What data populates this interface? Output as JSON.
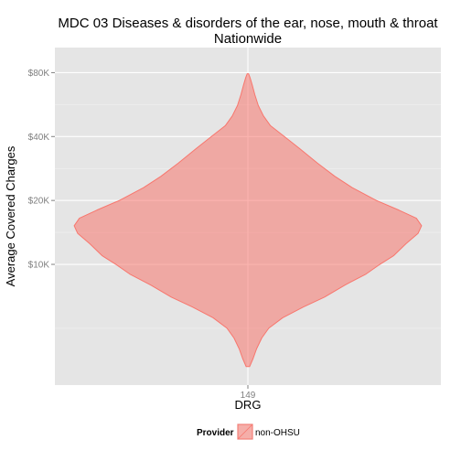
{
  "chart_data": {
    "type": "violin",
    "title": "MDC 03 Diseases & disorders of the ear, nose, mouth & throat",
    "subtitle": "Nationwide",
    "xlabel": "DRG",
    "ylabel": "Average Covered Charges",
    "categories": [
      "149"
    ],
    "y_scale": "log",
    "y_ticks": [
      {
        "value": 10000,
        "label": "$10K"
      },
      {
        "value": 20000,
        "label": "$20K"
      },
      {
        "value": 40000,
        "label": "$40K"
      },
      {
        "value": 80000,
        "label": "$80K"
      }
    ],
    "y_minor_ticks": [
      5000,
      14142,
      28284,
      56569
    ],
    "ylim": [
      2700,
      105000
    ],
    "grid": true,
    "legend": {
      "title": "Provider",
      "placement": "bottom",
      "entries": [
        {
          "label": "non-OHSU",
          "color": "#F8766D"
        }
      ]
    },
    "series": [
      {
        "name": "non-OHSU",
        "category": "149",
        "fill": "#F8766D",
        "opacity": 0.55,
        "density": [
          [
            3300,
            0.01
          ],
          [
            3600,
            0.03
          ],
          [
            4000,
            0.05
          ],
          [
            4500,
            0.08
          ],
          [
            5000,
            0.12
          ],
          [
            5600,
            0.2
          ],
          [
            6300,
            0.32
          ],
          [
            7000,
            0.44
          ],
          [
            8000,
            0.56
          ],
          [
            9000,
            0.68
          ],
          [
            10000,
            0.76
          ],
          [
            11000,
            0.84
          ],
          [
            12500,
            0.91
          ],
          [
            14000,
            0.98
          ],
          [
            15200,
            1.0
          ],
          [
            16500,
            0.97
          ],
          [
            18000,
            0.87
          ],
          [
            20000,
            0.74
          ],
          [
            23000,
            0.6
          ],
          [
            26000,
            0.5
          ],
          [
            30000,
            0.4
          ],
          [
            35000,
            0.3
          ],
          [
            40000,
            0.21
          ],
          [
            45000,
            0.13
          ],
          [
            50000,
            0.09
          ],
          [
            56000,
            0.06
          ],
          [
            63000,
            0.04
          ],
          [
            70000,
            0.025
          ],
          [
            76000,
            0.012
          ],
          [
            79000,
            0.004
          ]
        ]
      }
    ]
  }
}
